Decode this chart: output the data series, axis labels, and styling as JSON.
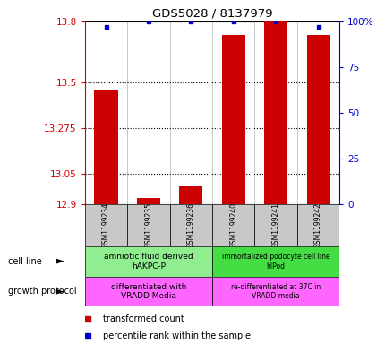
{
  "title": "GDS5028 / 8137979",
  "samples": [
    "GSM1199234",
    "GSM1199235",
    "GSM1199236",
    "GSM1199240",
    "GSM1199241",
    "GSM1199242"
  ],
  "red_values": [
    13.46,
    12.93,
    12.99,
    13.73,
    13.8,
    13.73
  ],
  "blue_values": [
    100,
    100,
    100,
    100,
    100,
    100
  ],
  "blue_visible": [
    0,
    1,
    1,
    1,
    0,
    1
  ],
  "ylim_left": [
    12.9,
    13.8
  ],
  "ylim_right": [
    0,
    100
  ],
  "yticks_left": [
    12.9,
    13.05,
    13.275,
    13.5,
    13.8
  ],
  "yticks_right": [
    0,
    25,
    50,
    75,
    100
  ],
  "ytick_labels_left": [
    "12.9",
    "13.05",
    "13.275",
    "13.5",
    "13.8"
  ],
  "ytick_labels_right": [
    "0",
    "25",
    "50",
    "75",
    "100%"
  ],
  "bar_color": "#CC0000",
  "dot_color": "#0000CC",
  "background_color": "#ffffff",
  "tick_color_left": "#CC0000",
  "tick_color_right": "#0000CC",
  "cell_line_labels": [
    "amniotic fluid derived\nhAKPC-P",
    "immortalized podocyte cell line\nhIPod"
  ],
  "cell_line_colors": [
    "#90EE90",
    "#44DD44"
  ],
  "growth_protocol_labels": [
    "differentiated with\nVRADD Media",
    "re-differentiated at 37C in\nVRADD media"
  ],
  "growth_protocol_color": "#FF66FF",
  "legend_items": [
    {
      "color": "#CC0000",
      "label": "transformed count"
    },
    {
      "color": "#0000CC",
      "label": "percentile rank within the sample"
    }
  ]
}
